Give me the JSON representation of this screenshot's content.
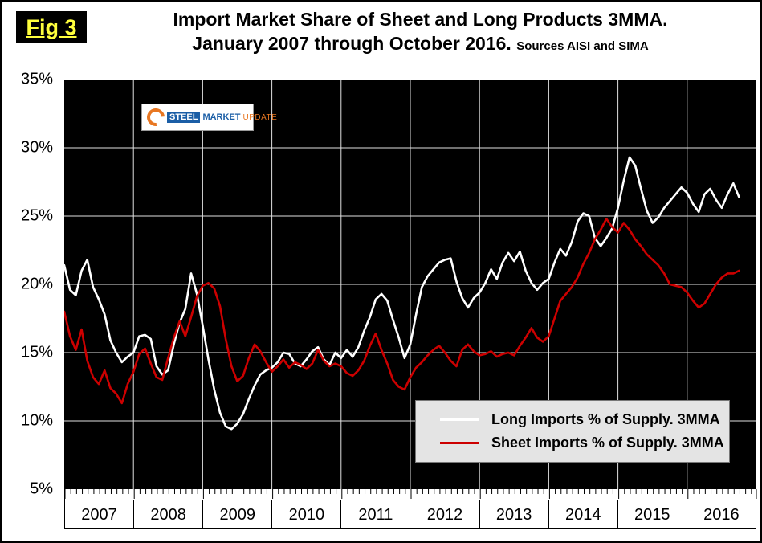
{
  "figure_label": "Fig 3",
  "title": {
    "line1": "Import Market Share of Sheet and Long Products 3MMA.",
    "line2": "January 2007 through October 2016.",
    "sources": "Sources AISI and SIMA"
  },
  "logo": {
    "steel": "STEEL",
    "market": "MARKET",
    "update": "UPDATE"
  },
  "legend": [
    {
      "label": "Long Imports % of Supply. 3MMA",
      "color": "#ffffff"
    },
    {
      "label": "Sheet Imports % of Supply. 3MMA",
      "color": "#cc0000"
    }
  ],
  "chart_data": {
    "type": "line",
    "title": "Import Market Share of Sheet and Long Products 3MMA. January 2007 through October 2016.",
    "sources": "Sources AISI and SIMA",
    "plot_background": "#000000",
    "grid": true,
    "gridline_color": "#e0e0e0",
    "ylim": [
      5,
      35
    ],
    "y_ticks": [
      "35%",
      "30%",
      "25%",
      "20%",
      "15%",
      "10%",
      "5%"
    ],
    "x_years": [
      "2007",
      "2008",
      "2009",
      "2010",
      "2011",
      "2012",
      "2013",
      "2014",
      "2015",
      "2016"
    ],
    "months_span": 120,
    "x_start": "2007-01",
    "x_end": "2016-10",
    "legend_position": "inside-bottom-right",
    "series": [
      {
        "name": "Long Imports % of Supply. 3MMA",
        "color": "#ffffff",
        "values": [
          21.4,
          19.6,
          19.2,
          21.0,
          21.8,
          19.8,
          18.9,
          17.8,
          15.9,
          15.0,
          14.3,
          14.7,
          15.0,
          16.2,
          16.3,
          16.0,
          14.0,
          13.4,
          13.7,
          15.6,
          17.2,
          18.2,
          20.8,
          19.3,
          17.0,
          14.5,
          12.3,
          10.6,
          9.6,
          9.4,
          9.8,
          10.5,
          11.6,
          12.6,
          13.4,
          13.7,
          13.9,
          14.3,
          15.0,
          14.9,
          14.2,
          14.0,
          14.5,
          15.1,
          15.4,
          14.5,
          14.1,
          15.0,
          14.6,
          15.2,
          14.7,
          15.4,
          16.6,
          17.6,
          18.9,
          19.3,
          18.8,
          17.4,
          16.1,
          14.6,
          15.6,
          17.8,
          19.8,
          20.6,
          21.1,
          21.6,
          21.8,
          21.9,
          20.2,
          19.0,
          18.3,
          19.0,
          19.4,
          20.1,
          21.1,
          20.4,
          21.6,
          22.3,
          21.7,
          22.4,
          21.0,
          20.1,
          19.6,
          20.1,
          20.4,
          21.6,
          22.6,
          22.1,
          23.1,
          24.6,
          25.2,
          25.0,
          23.4,
          22.8,
          23.4,
          24.1,
          25.6,
          27.6,
          29.3,
          28.7,
          27.0,
          25.4,
          24.5,
          24.9,
          25.6,
          26.1,
          26.6,
          27.1,
          26.7,
          25.9,
          25.3,
          26.6,
          27.0,
          26.2,
          25.6,
          26.6,
          27.4,
          26.4
        ]
      },
      {
        "name": "Sheet Imports % of Supply. 3MMA",
        "color": "#cc0000",
        "values": [
          18.0,
          16.2,
          15.2,
          16.7,
          14.4,
          13.2,
          12.7,
          13.7,
          12.4,
          12.0,
          11.3,
          12.7,
          13.6,
          14.9,
          15.3,
          14.2,
          13.2,
          13.0,
          14.6,
          16.1,
          17.3,
          16.2,
          17.6,
          19.1,
          19.9,
          20.1,
          19.7,
          18.4,
          16.0,
          14.0,
          12.9,
          13.3,
          14.6,
          15.6,
          15.1,
          14.3,
          13.6,
          14.0,
          14.5,
          13.9,
          14.3,
          14.1,
          13.8,
          14.2,
          15.2,
          14.4,
          14.0,
          14.2,
          14.0,
          13.5,
          13.3,
          13.7,
          14.4,
          15.5,
          16.4,
          15.2,
          14.2,
          13.0,
          12.5,
          12.3,
          13.2,
          13.9,
          14.3,
          14.8,
          15.2,
          15.5,
          15.0,
          14.4,
          14.0,
          15.2,
          15.6,
          15.1,
          14.8,
          14.9,
          15.1,
          14.7,
          14.9,
          15.0,
          14.8,
          15.5,
          16.1,
          16.8,
          16.1,
          15.8,
          16.2,
          17.5,
          18.8,
          19.3,
          19.8,
          20.5,
          21.5,
          22.3,
          23.3,
          24.0,
          24.8,
          24.2,
          23.8,
          24.5,
          24.0,
          23.3,
          22.8,
          22.2,
          21.8,
          21.4,
          20.8,
          20.0,
          19.9,
          19.8,
          19.4,
          18.8,
          18.3,
          18.6,
          19.3,
          20.0,
          20.5,
          20.8,
          20.8,
          21.0
        ]
      }
    ]
  }
}
